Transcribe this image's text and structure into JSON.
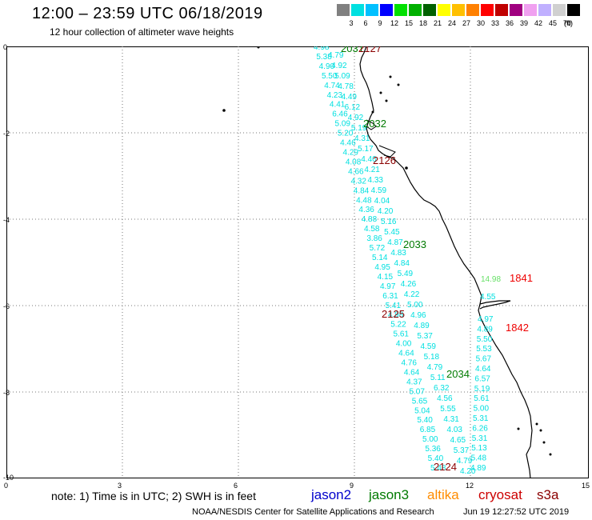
{
  "header": {
    "title": "12:00 – 23:59 UTC 06/18/2019",
    "subtitle": "12 hour collection of altimeter wave heights"
  },
  "colorbar": {
    "unit": "(ft)",
    "swatches": [
      {
        "color": "#808080",
        "label": "3"
      },
      {
        "color": "#00e0e0",
        "label": "6"
      },
      {
        "color": "#00c0ff",
        "label": "9"
      },
      {
        "color": "#0000ff",
        "label": "12"
      },
      {
        "color": "#00e000",
        "label": "15"
      },
      {
        "color": "#00b000",
        "label": "18"
      },
      {
        "color": "#006000",
        "label": "21"
      },
      {
        "color": "#ffff00",
        "label": "24"
      },
      {
        "color": "#ffc000",
        "label": "27"
      },
      {
        "color": "#ff8000",
        "label": "30"
      },
      {
        "color": "#ff0000",
        "label": "33"
      },
      {
        "color": "#c00000",
        "label": "36"
      },
      {
        "color": "#a00080",
        "label": "39"
      },
      {
        "color": "#f0a0f0",
        "label": "42"
      },
      {
        "color": "#c0b0ff",
        "label": "45"
      },
      {
        "color": "#d0d0d0",
        "label": "70"
      },
      {
        "color": "#000000",
        "label": ""
      }
    ]
  },
  "axes": {
    "x_ticks": [
      "0",
      "3",
      "6",
      "9",
      "12",
      "15"
    ],
    "y_ticks": [
      "0",
      "-2",
      "-4",
      "-6",
      "-8",
      "-10"
    ]
  },
  "swh_colors": {
    "cyan": "#00e0e0",
    "light_green": "#66e066",
    "dark_green": "#007a00",
    "dark_red": "#8b0000",
    "red": "#ee0000"
  },
  "track_points_west": [
    "4.98",
    "5.38",
    "4.90",
    "5.50",
    "4.74",
    "4.23",
    "4.41",
    "6.46",
    "5.09",
    "5.20",
    "4.46",
    "4.29",
    "4.08",
    "4.66",
    "4.32",
    "4.84",
    "4.48",
    "4.36",
    "4.88",
    "4.58",
    "3.86",
    "5.72",
    "5.14",
    "4.95",
    "4.15",
    "4.97",
    "6.31",
    "5.41",
    "4.98",
    "5.22",
    "5.61",
    "4.00",
    "4.64",
    "4.76",
    "4.64",
    "4.37",
    "5.07",
    "5.65",
    "5.04",
    "5.40",
    "6.85",
    "5.00",
    "5.36",
    "5.40",
    "5.48"
  ],
  "track_points_mid": [
    "4.79",
    "4.92",
    "5.09",
    "4.78",
    "4.49",
    "6.12",
    "4.92",
    "5.19",
    "4.31",
    "5.17",
    "4.40",
    "4.21",
    "4.33",
    "4.59",
    "4.04",
    "4.20",
    "5.16",
    "5.45",
    "4.87",
    "4.83",
    "4.84",
    "5.49",
    "4.26",
    "4.22",
    "5.00",
    "4.96",
    "4.89",
    "5.37",
    "4.59",
    "5.18",
    "4.79",
    "5.11",
    "6.32",
    "4.56",
    "5.55",
    "4.31",
    "4.03",
    "4.65",
    "5.37",
    "4.79",
    "4.20"
  ],
  "track_points_east": [
    "4.97",
    "4.89",
    "5.50",
    "5.53",
    "5.67",
    "4.64",
    "6.57",
    "5.19",
    "5.61",
    "5.00",
    "5.31",
    "6.26",
    "5.31",
    "5.13",
    "5.48",
    "4.89"
  ],
  "other_values": {
    "v_green": "14.98",
    "v_cyan": "4.55"
  },
  "time_labels": [
    {
      "text": "2031",
      "color": "dark_green"
    },
    {
      "text": "2127",
      "color": "dark_red"
    },
    {
      "text": "2032",
      "color": "dark_green"
    },
    {
      "text": "2126",
      "color": "dark_red"
    },
    {
      "text": "2033",
      "color": "dark_green"
    },
    {
      "text": "1841",
      "color": "red"
    },
    {
      "text": "2125",
      "color": "dark_red"
    },
    {
      "text": "1842",
      "color": "red"
    },
    {
      "text": "2034",
      "color": "dark_green"
    },
    {
      "text": "2124",
      "color": "dark_red"
    }
  ],
  "footer": {
    "note": "note: 1) Time is in UTC; 2) SWH is in feet",
    "credit": "NOAA/NESDIS Center for Satellite Applications and Research",
    "timestamp": "Jun 19 12:27:52 UTC 2019"
  },
  "legend": [
    {
      "name": "jason2",
      "color": "#0000cc"
    },
    {
      "name": "jason3",
      "color": "#007a00"
    },
    {
      "name": "altika",
      "color": "#ff8c00"
    },
    {
      "name": "cryosat",
      "color": "#cc0000"
    },
    {
      "name": "s3a",
      "color": "#8b0000"
    }
  ]
}
